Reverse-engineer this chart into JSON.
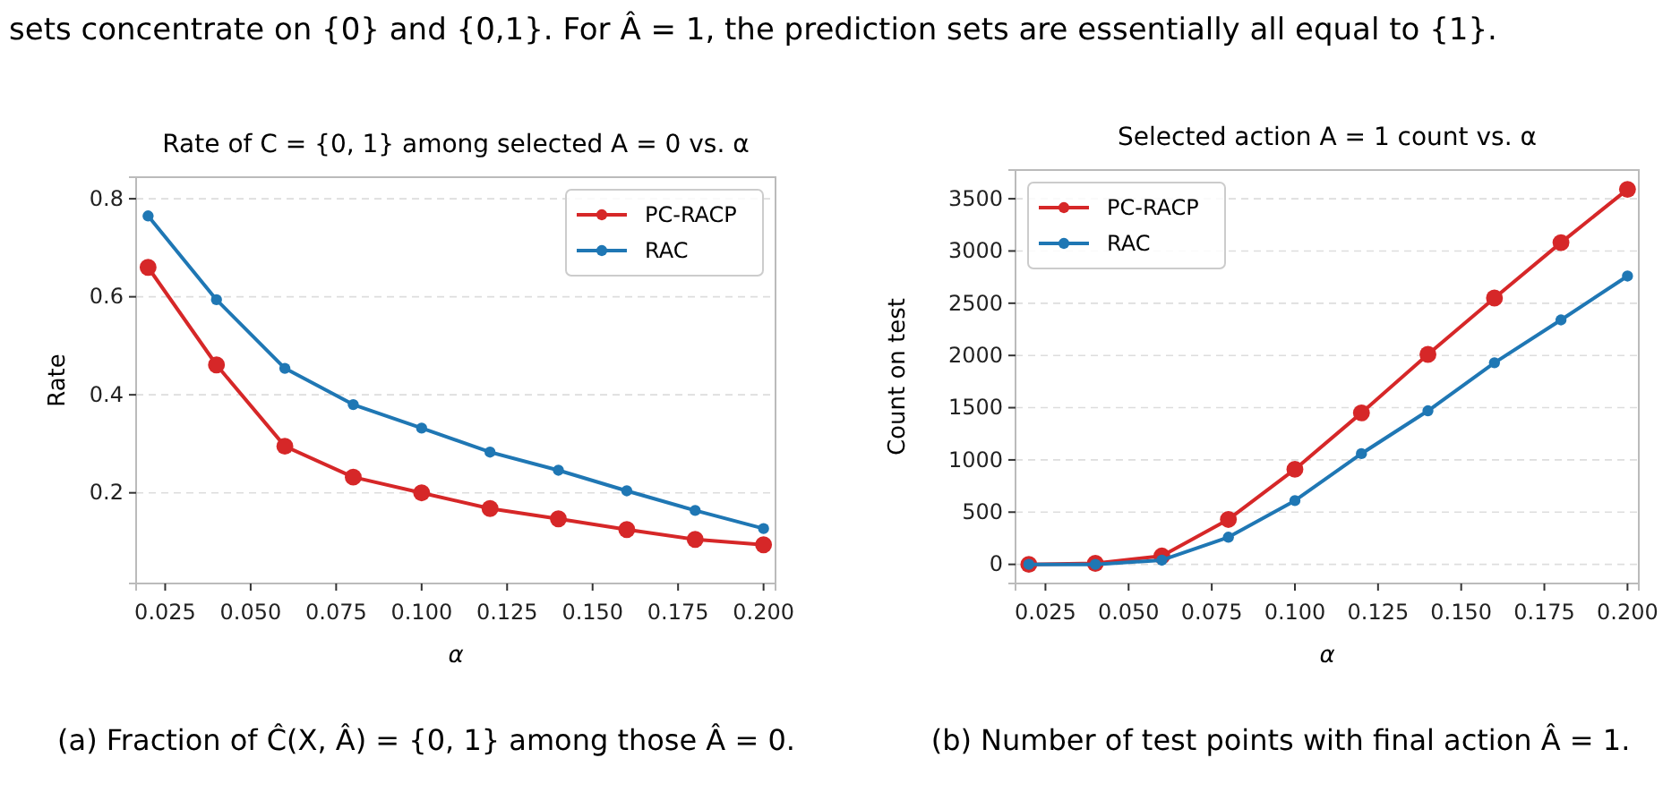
{
  "chart_data": [
    {
      "type": "line",
      "title": "Rate of C = {0, 1} among selected A = 0 vs. α",
      "xlabel": "α",
      "ylabel": "Rate",
      "x": [
        0.02,
        0.04,
        0.06,
        0.08,
        0.1,
        0.12,
        0.14,
        0.16,
        0.18,
        0.2
      ],
      "series": [
        {
          "name": "PC-RACP",
          "color": "#d62728",
          "values": [
            0.66,
            0.461,
            0.295,
            0.232,
            0.2,
            0.168,
            0.147,
            0.125,
            0.105,
            0.094
          ]
        },
        {
          "name": "RAC",
          "color": "#1f77b4",
          "values": [
            0.765,
            0.594,
            0.454,
            0.38,
            0.332,
            0.283,
            0.246,
            0.204,
            0.164,
            0.127
          ]
        }
      ],
      "xlim": [
        0.0165,
        0.2035
      ],
      "ylim": [
        0.015,
        0.844
      ],
      "xticks": [
        {
          "value": 0.025,
          "label": "0.025"
        },
        {
          "value": 0.05,
          "label": "0.050"
        },
        {
          "value": 0.075,
          "label": "0.075"
        },
        {
          "value": 0.1,
          "label": "0.100"
        },
        {
          "value": 0.125,
          "label": "0.125"
        },
        {
          "value": 0.15,
          "label": "0.150"
        },
        {
          "value": 0.175,
          "label": "0.175"
        },
        {
          "value": 0.2,
          "label": "0.200"
        }
      ],
      "yticks": [
        0.2,
        0.4,
        0.6,
        0.8
      ],
      "grid": "y",
      "legend": "top right",
      "marker": "circle",
      "line_style": "solid",
      "annotations": [
        "sets concentrate on {0} and {0,1}. For Â = 1, the prediction sets are essentially all equal to {1}.",
        "(a) Fraction of Ĉ(X, Â) = {0, 1} among those Â = 0."
      ]
    },
    {
      "type": "line",
      "title": "Selected action A = 1 count vs. α",
      "xlabel": "α",
      "ylabel": "Count on test",
      "x": [
        0.02,
        0.04,
        0.06,
        0.08,
        0.1,
        0.12,
        0.14,
        0.16,
        0.18,
        0.2
      ],
      "series": [
        {
          "name": "PC-RACP",
          "color": "#d62728",
          "values": [
            0,
            10,
            80,
            430,
            910,
            1450,
            2010,
            2550,
            3080,
            3590
          ]
        },
        {
          "name": "RAC",
          "color": "#1f77b4",
          "values": [
            0,
            0,
            40,
            260,
            610,
            1060,
            1470,
            1930,
            2340,
            2760
          ]
        }
      ],
      "xlim": [
        0.016,
        0.2034
      ],
      "ylim": [
        -183,
        3775
      ],
      "xticks": [
        {
          "value": 0.025,
          "label": "0.025"
        },
        {
          "value": 0.05,
          "label": "0.050"
        },
        {
          "value": 0.075,
          "label": "0.075"
        },
        {
          "value": 0.1,
          "label": "0.100"
        },
        {
          "value": 0.125,
          "label": "0.125"
        },
        {
          "value": 0.15,
          "label": "0.150"
        },
        {
          "value": 0.175,
          "label": "0.175"
        },
        {
          "value": 0.2,
          "label": "0.200"
        }
      ],
      "yticks": [
        0,
        500,
        1000,
        1500,
        2000,
        2500,
        3000,
        3500
      ],
      "grid": "y",
      "legend": "top left",
      "marker": "circle",
      "line_style": "solid",
      "annotations": [
        "(b) Number of test points with final action Â = 1."
      ]
    }
  ]
}
